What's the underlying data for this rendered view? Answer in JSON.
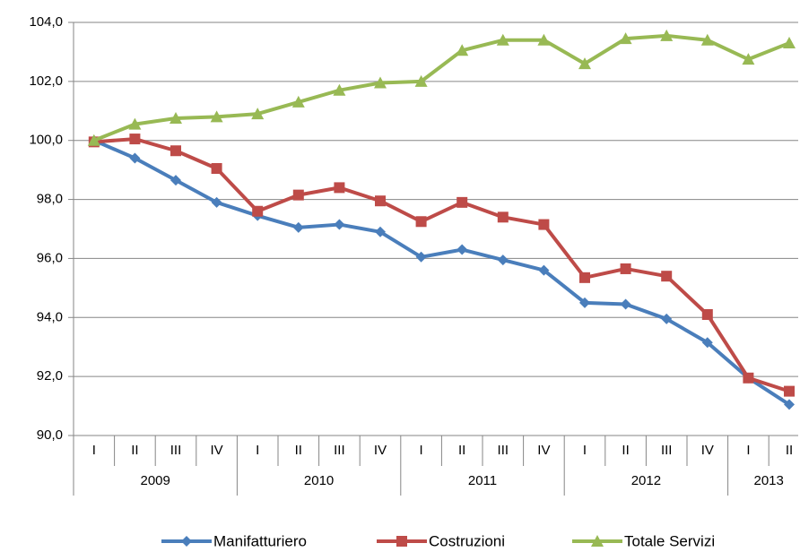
{
  "chart_data": {
    "type": "line",
    "groups": [
      {
        "label": "2009",
        "categories": [
          "I",
          "II",
          "III",
          "IV"
        ]
      },
      {
        "label": "2010",
        "categories": [
          "I",
          "II",
          "III",
          "IV"
        ]
      },
      {
        "label": "2011",
        "categories": [
          "I",
          "II",
          "III",
          "IV"
        ]
      },
      {
        "label": "2012",
        "categories": [
          "I",
          "II",
          "III",
          "IV"
        ]
      },
      {
        "label": "2013",
        "categories": [
          "I",
          "II"
        ]
      }
    ],
    "series": [
      {
        "name": "Manifatturiero",
        "color": "#4a7ebb",
        "marker": "diamond",
        "values": [
          100.0,
          99.4,
          98.65,
          97.9,
          97.45,
          97.05,
          97.15,
          96.9,
          96.05,
          96.3,
          95.95,
          95.6,
          94.5,
          94.45,
          93.95,
          93.15,
          91.95,
          91.05
        ]
      },
      {
        "name": "Costruzioni",
        "color": "#be4b48",
        "marker": "square",
        "values": [
          99.95,
          100.05,
          99.65,
          99.05,
          97.6,
          98.15,
          98.4,
          97.95,
          97.25,
          97.9,
          97.4,
          97.15,
          95.35,
          95.65,
          95.4,
          94.1,
          91.95,
          91.5
        ]
      },
      {
        "name": "Totale Servizi",
        "color": "#98b954",
        "marker": "triangle",
        "values": [
          100.0,
          100.55,
          100.75,
          100.8,
          100.9,
          101.3,
          101.7,
          101.95,
          102.0,
          103.05,
          103.4,
          103.4,
          102.6,
          103.45,
          103.55,
          103.4,
          102.75,
          103.3
        ]
      }
    ],
    "ylim": [
      90,
      104
    ],
    "yticks": [
      {
        "value": 90,
        "label": "90,0"
      },
      {
        "value": 92,
        "label": "92,0"
      },
      {
        "value": 94,
        "label": "94,0"
      },
      {
        "value": 96,
        "label": "96,0"
      },
      {
        "value": 98,
        "label": "98,0"
      },
      {
        "value": 100,
        "label": "100,0"
      },
      {
        "value": 102,
        "label": "102,0"
      },
      {
        "value": 104,
        "label": "104,0"
      }
    ],
    "grid": true,
    "legend": "bottom"
  }
}
